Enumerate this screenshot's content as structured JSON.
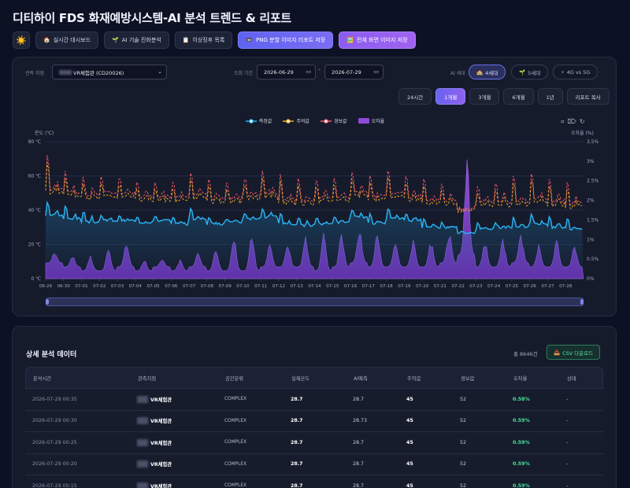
{
  "title": "디티하이 FDS 화재예방시스템-AI 분석 트렌드 & 리포트",
  "toolbar": {
    "theme_icon": "sun-icon",
    "buttons": [
      {
        "icon": "🏠",
        "label": "실시간 대시보드"
      },
      {
        "icon": "🌱",
        "label": "AI 기술 진화분석"
      },
      {
        "icon": "📋",
        "label": "이상징후 목록"
      },
      {
        "icon": "📼",
        "label": "PNG 분할 이미지 리포트 저장"
      },
      {
        "icon": "🖼️",
        "label": "전체 화면 이미지 저장"
      }
    ]
  },
  "filters": {
    "site_label": "관측 지점",
    "site_value": "VR체험관 (CD20026)",
    "period_label": "조회 기간",
    "date_from": "2026-06-29",
    "date_to": "2026-07-29",
    "ai_gen_label": "AI 세대",
    "generations": [
      {
        "icon": "🏫",
        "label": "4세대",
        "active": true
      },
      {
        "icon": "🌱",
        "label": "5세대",
        "active": false
      },
      {
        "icon": "⚡",
        "label": "4G vs 5G",
        "active": false
      }
    ],
    "ranges": [
      "24시간",
      "1개월",
      "3개월",
      "6개월",
      "1년",
      "리포트 복사"
    ],
    "active_range": "1개월"
  },
  "chart_data": {
    "type": "line",
    "legend": [
      "측정값",
      "주의값",
      "경보값",
      "오차율"
    ],
    "colors": {
      "measured": "#29b6f6",
      "caution": "#f5a623",
      "alarm": "#ff5b6b",
      "error": "#8e4ad8"
    },
    "ylabel_left": "온도 (℃)",
    "ylabel_right": "오차율 (%)",
    "y_left_ticks": [
      "0 ℃",
      "20 ℃",
      "40 ℃",
      "60 ℃",
      "80 ℃"
    ],
    "y_right_ticks": [
      "0%",
      "0.5%",
      "1%",
      "1.5%",
      "2%",
      "2.5%",
      "3%",
      "3.5%"
    ],
    "ylim_left": [
      0,
      80
    ],
    "ylim_right": [
      0,
      3.5
    ],
    "x_ticks": [
      "06-29",
      "06-30",
      "07-01",
      "07-02",
      "07-03",
      "07-04",
      "07-05",
      "07-06",
      "07-07",
      "07-08",
      "07-09",
      "07-10",
      "07-11",
      "07-12",
      "07-13",
      "07-14",
      "07-15",
      "07-16",
      "07-17",
      "07-18",
      "07-19",
      "07-20",
      "07-21",
      "07-22",
      "07-23",
      "07-24",
      "07-25",
      "07-26",
      "07-27",
      "07-28"
    ],
    "series": [
      {
        "name": "측정값",
        "daily_base": [
          37,
          35,
          33,
          34,
          34,
          33,
          34,
          32,
          35,
          32,
          33,
          35,
          36,
          32,
          31,
          32,
          33,
          36,
          32,
          35,
          34,
          30,
          30,
          27,
          29,
          30,
          30,
          32,
          30,
          29
        ],
        "daily_peak": [
          48,
          45,
          42,
          38,
          37,
          38,
          37,
          37,
          43,
          38,
          36,
          40,
          43,
          41,
          38,
          37,
          38,
          41,
          40,
          43,
          40,
          38,
          34,
          27,
          33,
          34,
          38,
          40,
          38,
          38
        ]
      },
      {
        "name": "주의값",
        "daily_base": [
          50,
          48,
          47,
          48,
          48,
          46,
          46,
          45,
          47,
          45,
          45,
          47,
          48,
          44,
          44,
          45,
          46,
          48,
          46,
          48,
          46,
          44,
          44,
          40,
          43,
          43,
          43,
          45,
          43,
          42
        ],
        "daily_peak": [
          75,
          62,
          58,
          58,
          58,
          56,
          55,
          57,
          63,
          57,
          55,
          58,
          63,
          62,
          59,
          57,
          58,
          62,
          60,
          65,
          60,
          58,
          55,
          40,
          53,
          56,
          60,
          62,
          58,
          56
        ]
      },
      {
        "name": "경보값",
        "daily_base": [
          52,
          50,
          49,
          50,
          50,
          48,
          48,
          47,
          49,
          47,
          47,
          49,
          50,
          46,
          46,
          47,
          48,
          50,
          48,
          50,
          48,
          46,
          46,
          41,
          45,
          45,
          45,
          47,
          45,
          44
        ],
        "daily_peak": [
          80,
          67,
          63,
          63,
          63,
          61,
          60,
          62,
          68,
          62,
          60,
          63,
          68,
          67,
          64,
          62,
          63,
          67,
          65,
          70,
          65,
          63,
          60,
          41,
          58,
          61,
          65,
          67,
          63,
          61
        ]
      },
      {
        "name": "오차율",
        "daily_base": [
          0.4,
          0.3,
          0.2,
          0.2,
          0.3,
          0.2,
          0.3,
          0.2,
          0.3,
          0.2,
          0.2,
          0.2,
          0.3,
          0.3,
          0.3,
          0.2,
          0.3,
          0.4,
          0.3,
          0.3,
          0.3,
          0.3,
          0.4,
          0.6,
          0.3,
          0.3,
          0.4,
          0.3,
          0.3,
          0.3
        ],
        "daily_peak": [
          0.7,
          0.6,
          0.6,
          0.8,
          1.0,
          0.5,
          0.5,
          0.5,
          0.7,
          0.8,
          1.2,
          1.2,
          0.9,
          1.0,
          1.1,
          1.2,
          1.2,
          1.4,
          1.2,
          1.1,
          1.0,
          1.0,
          1.3,
          3.5,
          1.0,
          1.1,
          1.2,
          0.9,
          1.0,
          0.9
        ]
      }
    ]
  },
  "detail": {
    "title": "상세 분석 데이터",
    "total": "총 8646건",
    "csv_label": "CSV 다운로드",
    "columns": [
      "분석시간",
      "관측지점",
      "공간분류",
      "실제온도",
      "AI예측",
      "주의값",
      "경보값",
      "오차율",
      "상태"
    ],
    "rows": [
      [
        "2026-07-29 00:35",
        "VR체험관",
        "COMPLEX",
        "28.7",
        "28.7",
        "45",
        "52",
        "0.58%",
        "-"
      ],
      [
        "2026-07-29 00:30",
        "VR체험관",
        "COMPLEX",
        "28.7",
        "28.73",
        "45",
        "52",
        "0.59%",
        "-"
      ],
      [
        "2026-07-29 00:25",
        "VR체험관",
        "COMPLEX",
        "28.7",
        "28.7",
        "45",
        "52",
        "0.59%",
        "-"
      ],
      [
        "2026-07-29 00:20",
        "VR체험관",
        "COMPLEX",
        "28.7",
        "28.7",
        "45",
        "52",
        "0.59%",
        "-"
      ],
      [
        "2026-07-29 00:15",
        "VR체험관",
        "COMPLEX",
        "28.7",
        "28.7",
        "45",
        "52",
        "0.59%",
        "-"
      ]
    ]
  }
}
